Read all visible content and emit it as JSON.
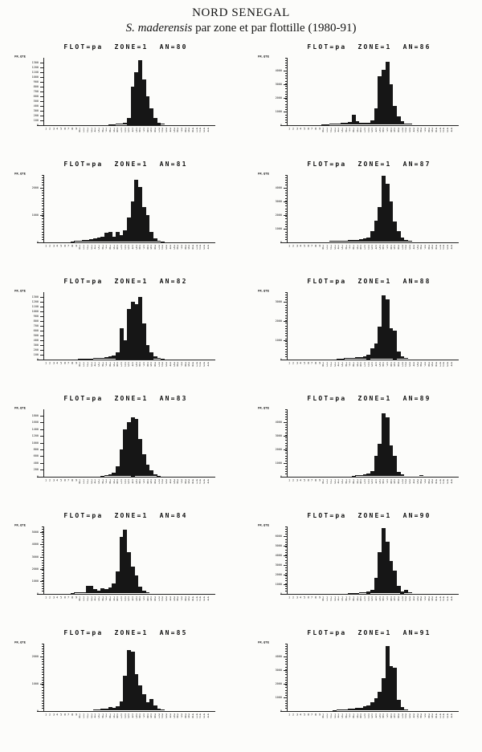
{
  "title": {
    "line1": "NORD SENEGAL",
    "species": "S. maderensis",
    "subtitle_rest": " par zone et par flottille (1980-91)"
  },
  "chart_data": {
    "type": "bar",
    "layout": "6 rows x 2 columns of histograms",
    "ylabel": "FR.QTE",
    "grid": false,
    "x_classes": [
      1,
      2,
      3,
      4,
      5,
      6,
      7,
      8,
      9,
      10,
      11,
      12,
      13,
      14,
      15,
      16,
      17,
      18,
      19,
      20,
      21,
      22,
      23,
      24,
      25,
      26,
      27,
      28,
      29,
      30,
      31,
      32,
      33,
      34,
      35,
      36,
      37,
      38,
      39,
      40,
      41,
      42,
      43,
      44
    ],
    "charts": [
      {
        "header": "FLOT=pa  ZONE=1  AN=80",
        "flottille": "pa",
        "zone": "1",
        "an": "80",
        "ymax": 1400,
        "yticks": [
          0,
          100,
          200,
          300,
          400,
          500,
          600,
          700,
          800,
          900,
          1000,
          1100,
          1200,
          1300
        ],
        "values": [
          0,
          0,
          0,
          0,
          0,
          0,
          0,
          0,
          0,
          0,
          0,
          0,
          0,
          0,
          0,
          0,
          0,
          10,
          15,
          20,
          30,
          45,
          150,
          800,
          1100,
          1350,
          950,
          600,
          350,
          150,
          50,
          20,
          0,
          0,
          0,
          0,
          0,
          0,
          0,
          0,
          0,
          0,
          0,
          0
        ]
      },
      {
        "header": "FLOT=pa  ZONE=1  AN=86",
        "flottille": "pa",
        "zone": "1",
        "an": "86",
        "ymax": 5000,
        "yticks": [
          0,
          1000,
          2000,
          3000,
          4000
        ],
        "values": [
          0,
          0,
          0,
          0,
          0,
          0,
          0,
          0,
          0,
          40,
          50,
          60,
          80,
          100,
          120,
          150,
          200,
          750,
          250,
          150,
          120,
          150,
          300,
          1200,
          3600,
          4100,
          4700,
          3000,
          1400,
          600,
          250,
          100,
          60,
          0,
          0,
          0,
          0,
          0,
          0,
          0,
          0,
          0,
          0,
          0
        ]
      },
      {
        "header": "FLOT=pa  ZONE=1  AN=81",
        "flottille": "pa",
        "zone": "1",
        "an": "81",
        "ymax": 2500,
        "yticks": [
          0,
          1000,
          2000
        ],
        "values": [
          0,
          0,
          0,
          0,
          0,
          0,
          0,
          20,
          30,
          50,
          60,
          80,
          100,
          120,
          150,
          200,
          350,
          380,
          200,
          380,
          250,
          420,
          900,
          1500,
          2300,
          2050,
          1300,
          1000,
          380,
          120,
          50,
          20,
          0,
          0,
          0,
          0,
          0,
          0,
          0,
          0,
          0,
          0,
          0,
          0
        ]
      },
      {
        "header": "FLOT=pa  ZONE=1  AN=87",
        "flottille": "pa",
        "zone": "1",
        "an": "87",
        "ymax": 5000,
        "yticks": [
          0,
          1000,
          2000,
          3000,
          4000
        ],
        "values": [
          0,
          0,
          0,
          0,
          0,
          0,
          0,
          0,
          0,
          0,
          0,
          60,
          80,
          100,
          80,
          100,
          120,
          150,
          150,
          200,
          250,
          350,
          800,
          1600,
          2600,
          4900,
          4300,
          3000,
          1500,
          800,
          350,
          150,
          80,
          0,
          0,
          0,
          0,
          0,
          0,
          0,
          0,
          0,
          0,
          0
        ]
      },
      {
        "header": "FLOT=pa  ZONE=1  AN=82",
        "flottille": "pa",
        "zone": "1",
        "an": "82",
        "ymax": 1400,
        "yticks": [
          0,
          100,
          200,
          300,
          400,
          500,
          600,
          700,
          800,
          900,
          1000,
          1100,
          1200,
          1300
        ],
        "values": [
          0,
          0,
          0,
          0,
          0,
          0,
          0,
          0,
          0,
          10,
          10,
          15,
          15,
          20,
          20,
          30,
          40,
          60,
          80,
          150,
          650,
          400,
          1050,
          1200,
          1150,
          1300,
          750,
          300,
          150,
          60,
          20,
          10,
          0,
          0,
          0,
          0,
          0,
          0,
          0,
          0,
          0,
          0,
          0,
          0
        ]
      },
      {
        "header": "FLOT=pa  ZONE=1  AN=88",
        "flottille": "pa",
        "zone": "1",
        "an": "88",
        "ymax": 3500,
        "yticks": [
          0,
          1000,
          2000,
          3000
        ],
        "values": [
          0,
          0,
          0,
          0,
          0,
          0,
          0,
          0,
          0,
          0,
          0,
          0,
          0,
          30,
          40,
          50,
          60,
          80,
          100,
          120,
          150,
          250,
          550,
          800,
          1700,
          3300,
          3100,
          1600,
          1500,
          400,
          150,
          60,
          0,
          0,
          0,
          0,
          0,
          0,
          0,
          0,
          0,
          0,
          0,
          0
        ]
      },
      {
        "header": "FLOT=pa  ZONE=1  AN=83",
        "flottille": "pa",
        "zone": "1",
        "an": "83",
        "ymax": 2000,
        "yticks": [
          0,
          200,
          400,
          600,
          800,
          1000,
          1200,
          1400,
          1600,
          1800
        ],
        "values": [
          0,
          0,
          0,
          0,
          0,
          0,
          0,
          0,
          0,
          0,
          0,
          0,
          0,
          0,
          0,
          10,
          30,
          60,
          100,
          300,
          800,
          1400,
          1600,
          1750,
          1700,
          1100,
          650,
          350,
          180,
          60,
          20,
          0,
          0,
          0,
          0,
          0,
          0,
          0,
          0,
          0,
          0,
          0,
          0,
          0
        ]
      },
      {
        "header": "FLOT=pa  ZONE=1  AN=89",
        "flottille": "pa",
        "zone": "1",
        "an": "89",
        "ymax": 5000,
        "yticks": [
          0,
          1000,
          2000,
          3000,
          4000
        ],
        "values": [
          0,
          0,
          0,
          0,
          0,
          0,
          0,
          0,
          0,
          0,
          0,
          0,
          0,
          0,
          0,
          0,
          0,
          40,
          60,
          80,
          120,
          200,
          400,
          1500,
          2400,
          4700,
          4400,
          2300,
          1500,
          350,
          120,
          0,
          0,
          0,
          0,
          80,
          0,
          0,
          0,
          0,
          0,
          0,
          0,
          0
        ]
      },
      {
        "header": "FLOT=pa  ZONE=1  AN=84",
        "flottille": "pa",
        "zone": "1",
        "an": "84",
        "ymax": 5500,
        "yticks": [
          0,
          1000,
          2000,
          3000,
          4000,
          5000
        ],
        "values": [
          0,
          0,
          0,
          0,
          0,
          0,
          0,
          60,
          80,
          100,
          120,
          600,
          650,
          350,
          200,
          450,
          350,
          500,
          800,
          1800,
          4600,
          5200,
          3400,
          2200,
          1500,
          550,
          250,
          100,
          0,
          0,
          0,
          0,
          0,
          0,
          0,
          0,
          0,
          0,
          0,
          0,
          0,
          0,
          0,
          0
        ]
      },
      {
        "header": "FLOT=pa  ZONE=1  AN=90",
        "flottille": "pa",
        "zone": "1",
        "an": "90",
        "ymax": 7000,
        "yticks": [
          0,
          1000,
          2000,
          3000,
          4000,
          5000,
          6000
        ],
        "values": [
          0,
          0,
          0,
          0,
          0,
          0,
          0,
          0,
          0,
          0,
          0,
          0,
          0,
          0,
          0,
          0,
          40,
          60,
          80,
          100,
          150,
          250,
          400,
          1600,
          4300,
          6800,
          5400,
          3400,
          2400,
          800,
          250,
          400,
          100,
          0,
          0,
          0,
          0,
          0,
          0,
          0,
          0,
          0,
          0,
          0
        ]
      },
      {
        "header": "FLOT=pa  ZONE=1  AN=85",
        "flottille": "pa",
        "zone": "1",
        "an": "85",
        "ymax": 2500,
        "yticks": [
          0,
          1000,
          2000
        ],
        "values": [
          0,
          0,
          0,
          0,
          0,
          0,
          0,
          0,
          0,
          0,
          0,
          0,
          0,
          30,
          40,
          60,
          80,
          120,
          100,
          160,
          350,
          1300,
          2250,
          2200,
          1350,
          950,
          600,
          320,
          420,
          180,
          80,
          30,
          0,
          0,
          0,
          0,
          0,
          0,
          0,
          0,
          0,
          0,
          0,
          0
        ]
      },
      {
        "header": "FLOT=pa  ZONE=1  AN=91",
        "flottille": "pa",
        "zone": "1",
        "an": "91",
        "ymax": 5000,
        "yticks": [
          0,
          1000,
          2000,
          3000,
          4000
        ],
        "values": [
          0,
          0,
          0,
          0,
          0,
          0,
          0,
          0,
          0,
          0,
          0,
          0,
          40,
          60,
          80,
          100,
          120,
          150,
          180,
          220,
          300,
          400,
          600,
          900,
          1400,
          2400,
          4800,
          3300,
          3200,
          800,
          250,
          100,
          0,
          0,
          0,
          0,
          0,
          0,
          0,
          0,
          0,
          0,
          0,
          0
        ]
      }
    ]
  }
}
